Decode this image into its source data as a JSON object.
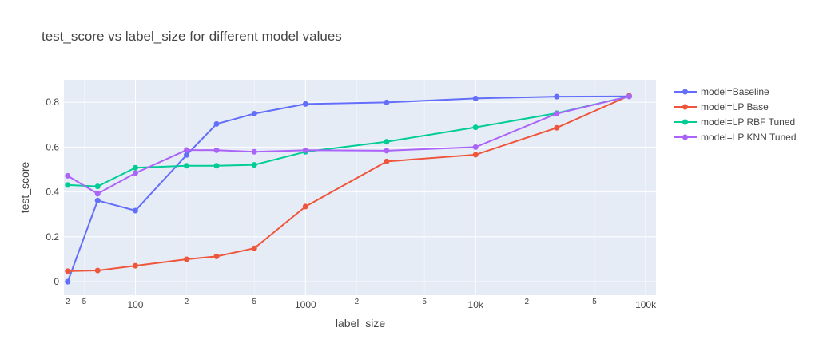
{
  "chart_data": {
    "type": "line",
    "title": "test_score vs label_size for different model values",
    "xlabel": "label_size",
    "ylabel": "test_score",
    "xscale": "log",
    "xlim": [
      38,
      115000
    ],
    "ylim": [
      -0.06,
      0.9
    ],
    "x_major_ticks": [
      {
        "value": 100,
        "label": "100"
      },
      {
        "value": 1000,
        "label": "1000"
      },
      {
        "value": 10000,
        "label": "10k"
      },
      {
        "value": 100000,
        "label": "100k"
      }
    ],
    "x_minor_ticks": [
      {
        "value": 50,
        "label": "5"
      },
      {
        "value": 200,
        "label": "2"
      },
      {
        "value": 500,
        "label": "5"
      },
      {
        "value": 2000,
        "label": "2"
      },
      {
        "value": 5000,
        "label": "5"
      },
      {
        "value": 20000,
        "label": "2"
      },
      {
        "value": 50000,
        "label": "5"
      }
    ],
    "x_edge_minor_tick": {
      "value": 40,
      "label": "2"
    },
    "y_ticks": [
      {
        "value": 0,
        "label": "0"
      },
      {
        "value": 0.2,
        "label": "0.2"
      },
      {
        "value": 0.4,
        "label": "0.4"
      },
      {
        "value": 0.6,
        "label": "0.6"
      },
      {
        "value": 0.8,
        "label": "0.8"
      }
    ],
    "x": [
      40,
      60,
      100,
      200,
      300,
      500,
      1000,
      3000,
      10000,
      30000,
      80000
    ],
    "series": [
      {
        "name": "model=Baseline",
        "color": "#636efa",
        "values": [
          0.0,
          0.362,
          0.317,
          0.565,
          0.703,
          0.749,
          0.792,
          0.799,
          0.817,
          0.825,
          0.826
        ]
      },
      {
        "name": "model=LP Base",
        "color": "#ef553b",
        "values": [
          0.047,
          0.05,
          0.071,
          0.1,
          0.113,
          0.149,
          0.335,
          0.536,
          0.566,
          0.686,
          0.829
        ]
      },
      {
        "name": "model=LP RBF Tuned",
        "color": "#00cc96",
        "values": [
          0.431,
          0.425,
          0.508,
          0.517,
          0.517,
          0.521,
          0.579,
          0.624,
          0.688,
          0.751,
          0.826
        ]
      },
      {
        "name": "model=LP KNN Tuned",
        "color": "#ab63fa",
        "values": [
          0.472,
          0.392,
          0.484,
          0.587,
          0.586,
          0.579,
          0.586,
          0.584,
          0.6,
          0.749,
          0.826
        ]
      }
    ]
  }
}
